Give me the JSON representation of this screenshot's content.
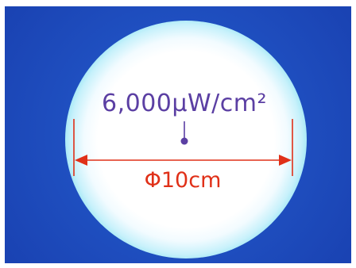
{
  "labels": {
    "intensity": "6,000μW/cm²",
    "diameter": "Φ10cm"
  },
  "colors": {
    "background": "#1f4fc0",
    "spot_core": "#ffffff",
    "spot_edge": "#3cc6e6",
    "intensity_text": "#5b3fa3",
    "diameter_marker": "#e03018"
  }
}
